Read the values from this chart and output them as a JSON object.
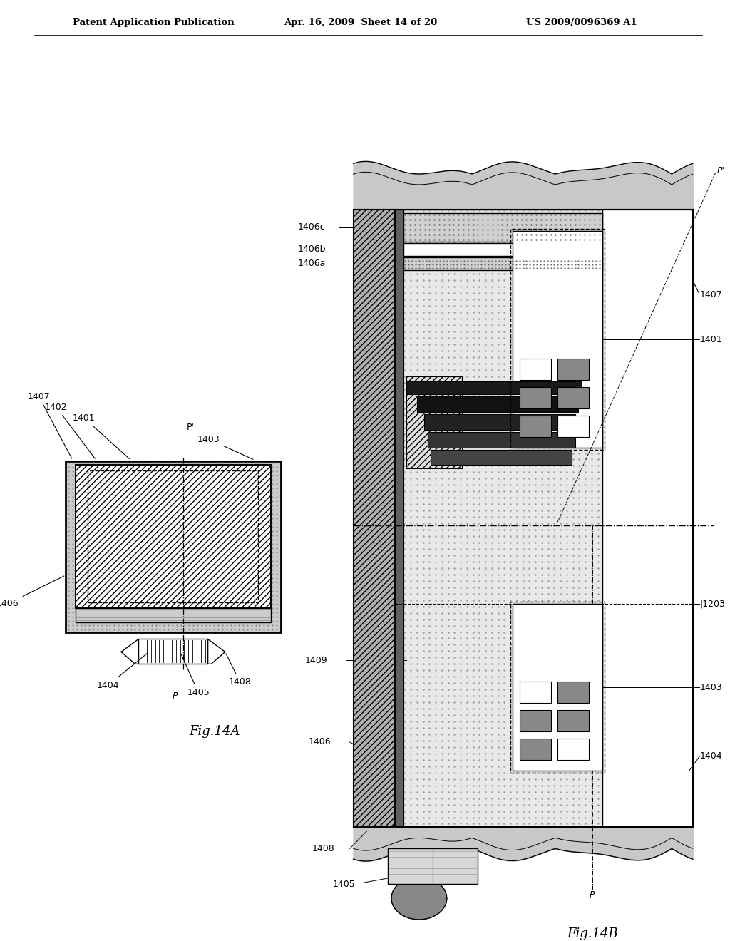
{
  "title_left": "Patent Application Publication",
  "title_center": "Apr. 16, 2009  Sheet 14 of 20",
  "title_right": "US 2009/0096369 A1",
  "fig14a_label": "Fig.14A",
  "fig14b_label": "Fig.14B",
  "bg_color": "#ffffff"
}
